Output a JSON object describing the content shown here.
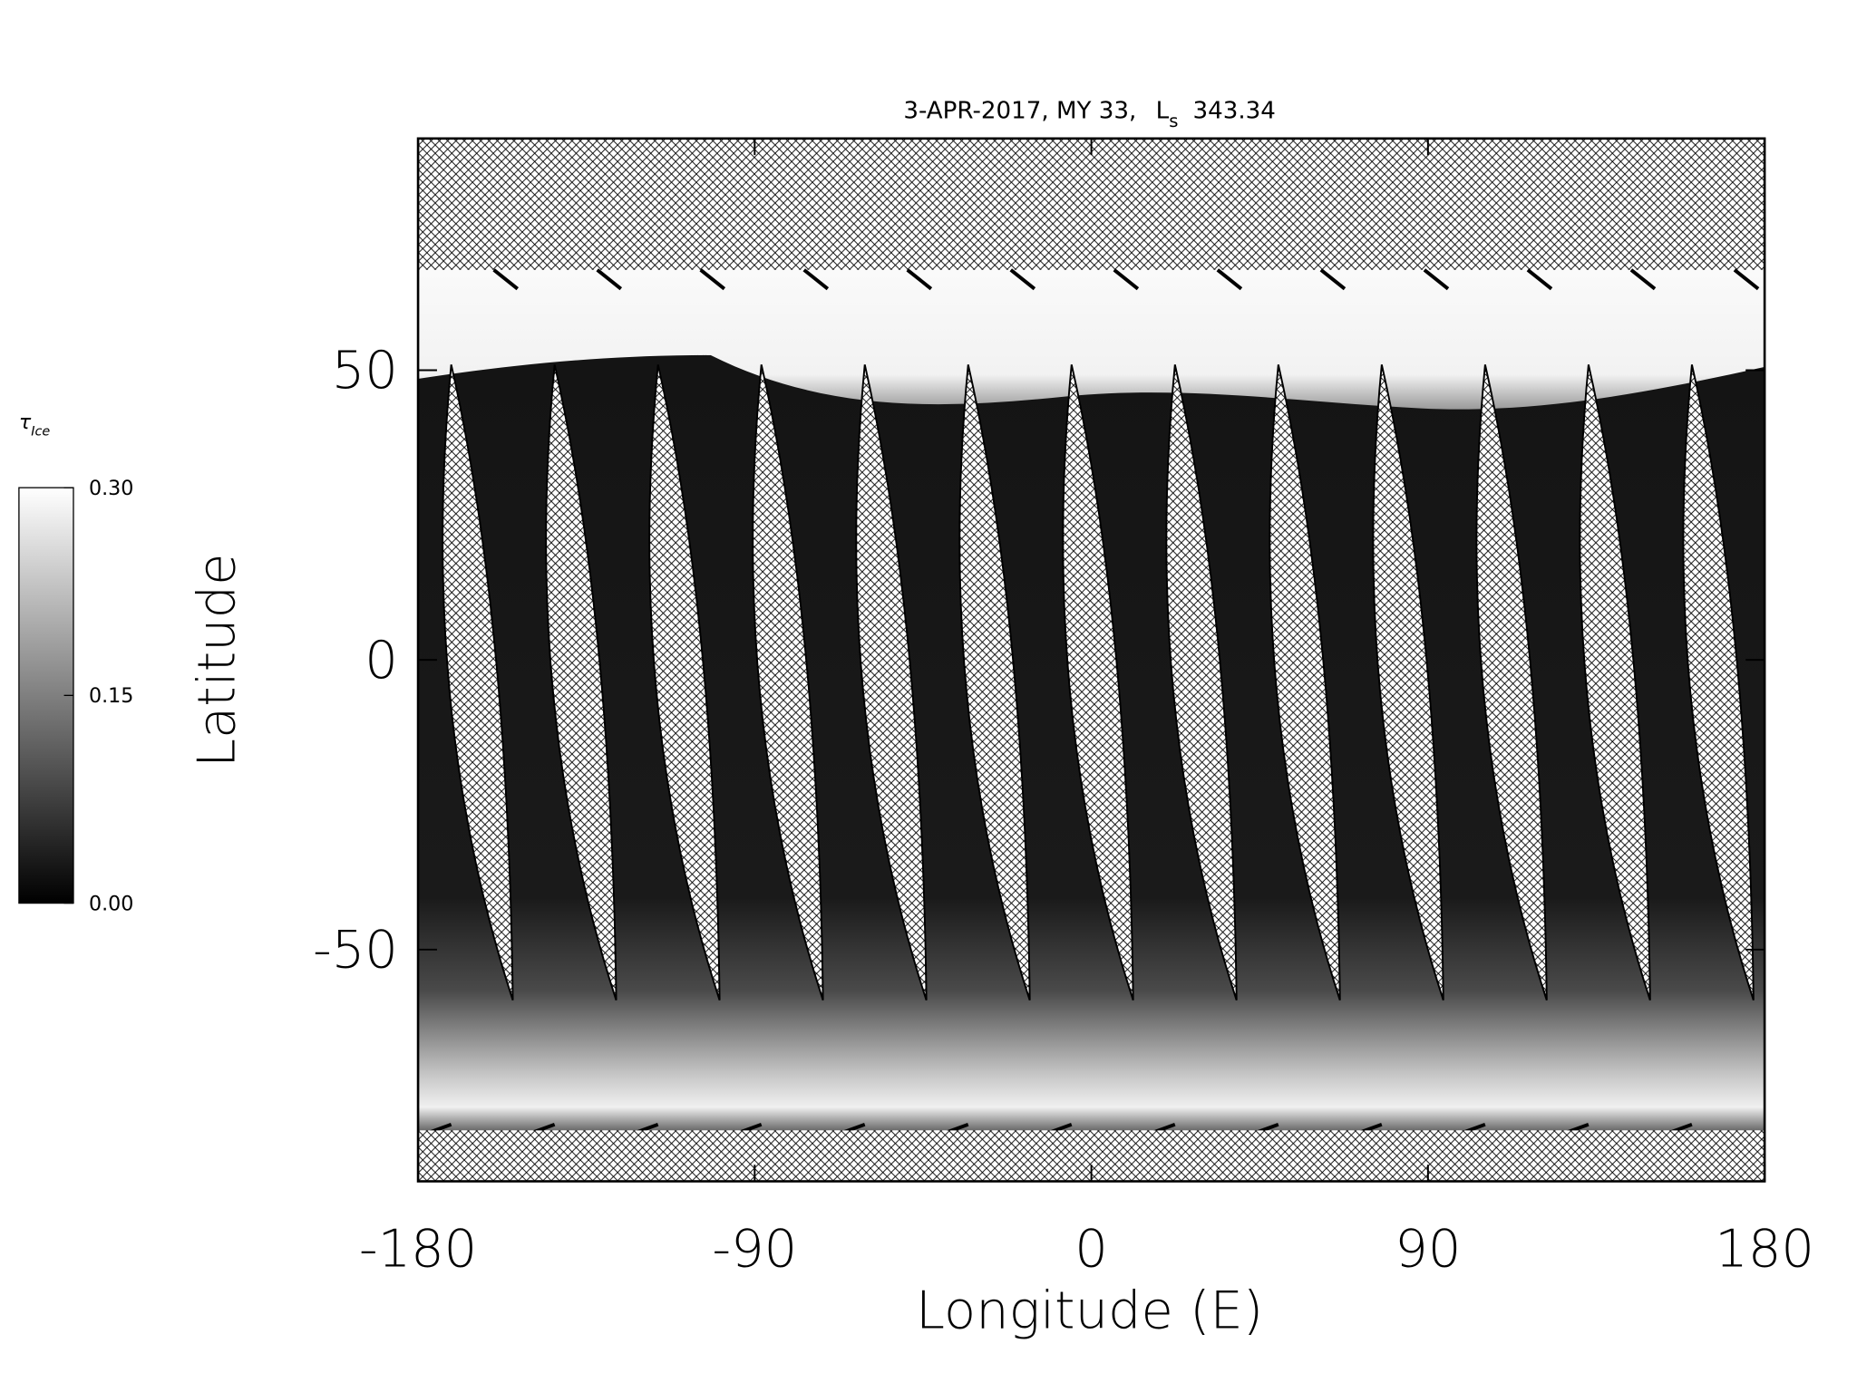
{
  "chart_data": {
    "type": "heatmap",
    "title": {
      "date": "3-APR-2017, MY 33,",
      "symbol": "L",
      "subscript": "s",
      "value": "343.34"
    },
    "x_label": "Longitude (E)",
    "y_label": "Latitude",
    "xlim": [
      -180,
      180
    ],
    "xticks": [
      -180,
      -90,
      0,
      90,
      180
    ],
    "ylim": [
      -90,
      90
    ],
    "yticks": [
      -50,
      0,
      50
    ],
    "colorbar": {
      "label": {
        "symbol": "τ",
        "subscript": "Ice"
      },
      "lim": [
        0,
        0.3
      ],
      "ticks": [
        {
          "value": 0,
          "label": "0.00"
        },
        {
          "value": 0.15,
          "label": "0.15"
        },
        {
          "value": 0.3,
          "label": "0.30"
        }
      ],
      "colors": [
        "#000000",
        "#ffffff"
      ]
    }
  }
}
